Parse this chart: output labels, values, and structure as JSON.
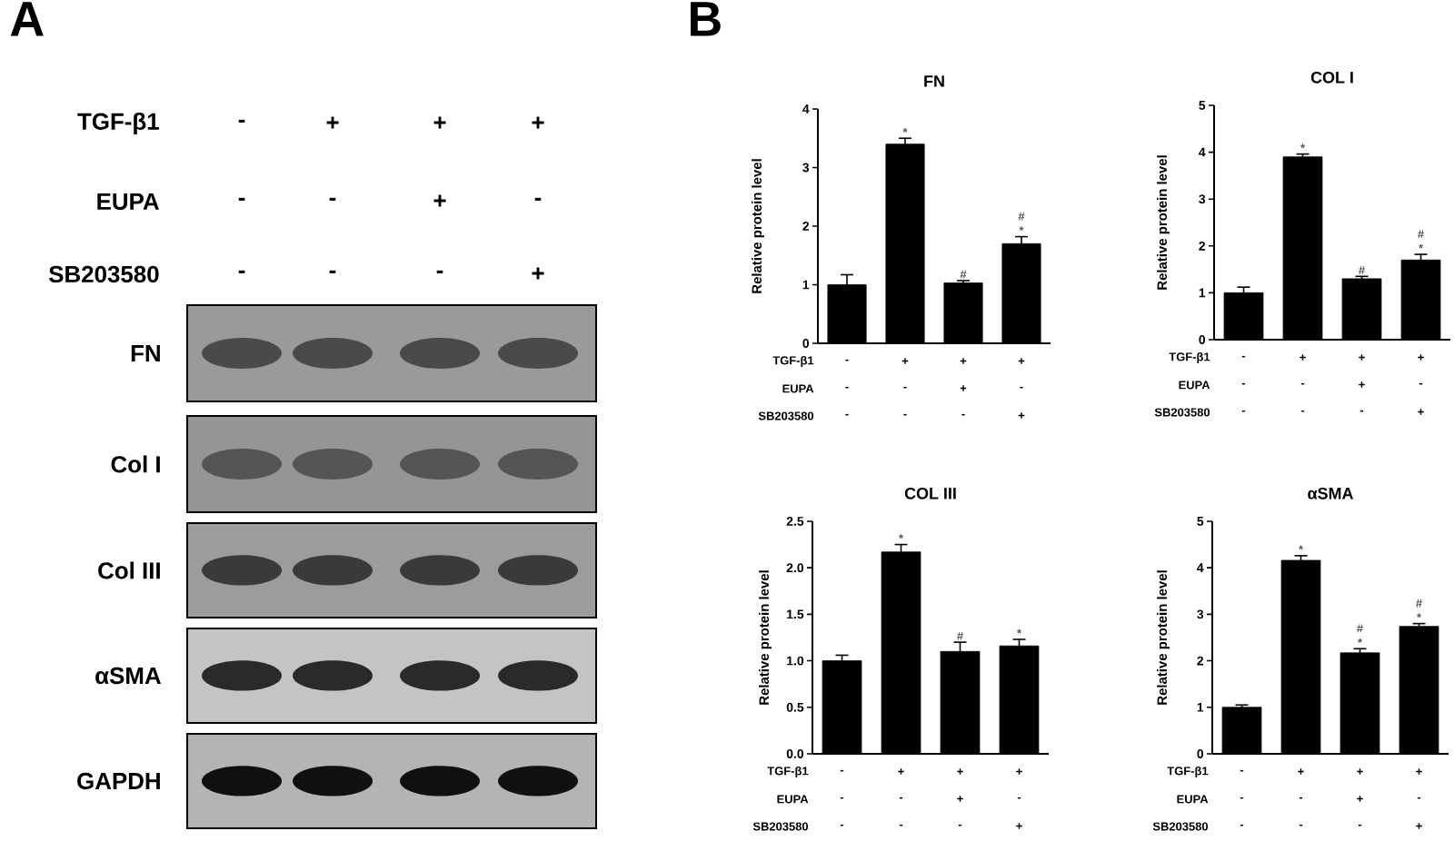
{
  "chart_data": [
    {
      "type": "other",
      "title": "A",
      "annotations": [
        "TGF-β1",
        "-",
        "+",
        "+",
        "+",
        "EUPA",
        "-",
        "-",
        "+",
        "-",
        "SB203580",
        "-",
        "-",
        "-",
        "+",
        "FN",
        "Col I",
        "Col III",
        "αSMA",
        "GAPDH"
      ]
    },
    {
      "type": "bar",
      "title": "FN",
      "ylabel": "Relative protein level",
      "categories": [
        null,
        null,
        null,
        null
      ],
      "values": [
        1.0,
        3.4,
        1.03,
        1.7
      ],
      "errors": [
        0.17,
        0.1,
        0.04,
        0.12
      ],
      "value_labels": [
        null,
        "*",
        "#",
        "# *"
      ],
      "color": "#000000",
      "ylim": [
        0,
        4
      ],
      "yticks": [
        0,
        1,
        2,
        3,
        4
      ],
      "annotations": [
        "TGF-β1",
        "-",
        "+",
        "+",
        "+",
        "EUPA",
        "-",
        "-",
        "+",
        "-",
        "SB203580",
        "-",
        "-",
        "-",
        "+",
        "B"
      ]
    },
    {
      "type": "bar",
      "title": "COL I",
      "ylabel": "Relative protein level",
      "categories": [
        null,
        null,
        null,
        null
      ],
      "values": [
        1.0,
        3.9,
        1.3,
        1.7
      ],
      "errors": [
        0.12,
        0.06,
        0.05,
        0.12
      ],
      "value_labels": [
        null,
        "*",
        "#",
        "# *"
      ],
      "color": "#000000",
      "ylim": [
        0,
        5
      ],
      "yticks": [
        0,
        1,
        2,
        3,
        4,
        5
      ],
      "annotations": [
        "TGF-β1",
        "-",
        "+",
        "+",
        "+",
        "EUPA",
        "-",
        "-",
        "+",
        "-",
        "SB203580",
        "-",
        "-",
        "-",
        "+"
      ]
    },
    {
      "type": "bar",
      "title": "COL III",
      "ylabel": "Relative protein level",
      "categories": [
        null,
        null,
        null,
        null
      ],
      "values": [
        1.0,
        2.17,
        1.1,
        1.16
      ],
      "errors": [
        0.06,
        0.08,
        0.1,
        0.07
      ],
      "value_labels": [
        null,
        "*",
        "#",
        "*"
      ],
      "color": "#000000",
      "ylim": [
        0,
        2.5
      ],
      "yticks": [
        {
          "value": 0,
          "label": "0.0"
        },
        {
          "value": 0.5,
          "label": "0.5"
        },
        {
          "value": 1,
          "label": "1.0"
        },
        {
          "value": 1.5,
          "label": "1.5"
        },
        {
          "value": 2,
          "label": "2.0"
        },
        {
          "value": 2.5,
          "label": "2.5"
        }
      ],
      "annotations": [
        "TGF-β1",
        "-",
        "+",
        "+",
        "+",
        "EUPA",
        "-",
        "-",
        "+",
        "-",
        "SB203580",
        "-",
        "-",
        "-",
        "+"
      ]
    },
    {
      "type": "bar",
      "title": "αSMA",
      "ylabel": "Relative protein level",
      "categories": [
        null,
        null,
        null,
        null
      ],
      "values": [
        1.0,
        4.16,
        2.17,
        2.74
      ],
      "errors": [
        0.05,
        0.1,
        0.09,
        0.06
      ],
      "value_labels": [
        null,
        "*",
        "# *",
        "# *"
      ],
      "color": "#000000",
      "ylim": [
        0,
        5
      ],
      "yticks": [
        0,
        1,
        2,
        3,
        4,
        5
      ],
      "annotations": [
        "TGF-β1",
        "-",
        "+",
        "+",
        "+",
        "EUPA",
        "-",
        "-",
        "+",
        "-",
        "SB203580",
        "-",
        "-",
        "-",
        "+"
      ]
    }
  ]
}
